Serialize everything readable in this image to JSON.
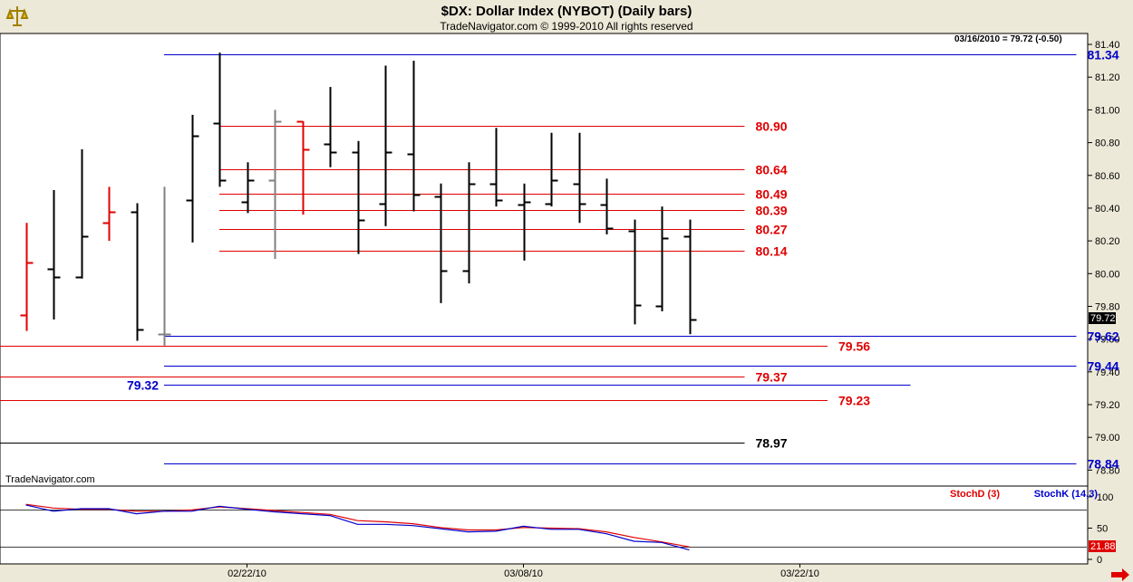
{
  "header": {
    "title": "$DX:  Dollar Index (NYBOT)  (Daily bars)",
    "subtitle": "TradeNavigator.com © 1999-2010 All rights reserved"
  },
  "watermark": "TradeNavigator.com",
  "last_quote": "03/16/2010 = 79.72 (-0.50)",
  "last_price_tag": "79.72",
  "stoch_value_tag": "21.88",
  "colors": {
    "panel_bg": "#ffffff",
    "frame_bg": "#ece9d8",
    "up_red": "#e00000",
    "blue": "#0000cc",
    "black": "#000000",
    "gray": "#808080"
  },
  "chart_data": [
    {
      "type": "ohlc",
      "title": "$DX:  Dollar Index (NYBOT)  (Daily bars)",
      "ylim": [
        78.78,
        81.45
      ],
      "y_ticks": [
        "81.40",
        "81.20",
        "81.00",
        "80.80",
        "80.60",
        "80.40",
        "80.20",
        "80.00",
        "79.80",
        "79.60",
        "79.40",
        "79.20",
        "79.00",
        "78.80"
      ],
      "x_ticks": [
        {
          "label": "02/22/10",
          "bar_index": 8
        },
        {
          "label": "03/08/10",
          "bar_index": 18
        },
        {
          "label": "03/22/10",
          "bar_index": 28
        }
      ],
      "bars": [
        {
          "open": 79.75,
          "high": 80.31,
          "low": 79.65,
          "close": 80.07,
          "color": "red"
        },
        {
          "open": 80.03,
          "high": 80.51,
          "low": 79.72,
          "close": 79.98,
          "color": "black"
        },
        {
          "open": 79.98,
          "high": 80.76,
          "low": 79.97,
          "close": 80.23,
          "color": "black"
        },
        {
          "open": 80.31,
          "high": 80.53,
          "low": 80.2,
          "close": 80.38,
          "color": "red"
        },
        {
          "open": 80.38,
          "high": 80.43,
          "low": 79.59,
          "close": 79.66,
          "color": "black"
        },
        {
          "open": 79.63,
          "high": 80.53,
          "low": 79.56,
          "close": 79.63,
          "color": "gray"
        },
        {
          "open": 80.45,
          "high": 80.97,
          "low": 80.19,
          "close": 80.84,
          "color": "black"
        },
        {
          "open": 80.92,
          "high": 81.35,
          "low": 80.53,
          "close": 80.57,
          "color": "black"
        },
        {
          "open": 80.44,
          "high": 80.68,
          "low": 80.37,
          "close": 80.57,
          "color": "black"
        },
        {
          "open": 80.57,
          "high": 81.0,
          "low": 80.09,
          "close": 80.93,
          "color": "gray"
        },
        {
          "open": 80.93,
          "high": 80.93,
          "low": 80.36,
          "close": 80.76,
          "color": "red"
        },
        {
          "open": 80.79,
          "high": 81.14,
          "low": 80.65,
          "close": 80.74,
          "color": "black"
        },
        {
          "open": 80.74,
          "high": 80.81,
          "low": 80.12,
          "close": 80.33,
          "color": "black"
        },
        {
          "open": 80.43,
          "high": 81.27,
          "low": 80.29,
          "close": 80.74,
          "color": "black"
        },
        {
          "open": 80.73,
          "high": 81.3,
          "low": 80.38,
          "close": 80.48,
          "color": "black"
        },
        {
          "open": 80.47,
          "high": 80.55,
          "low": 79.82,
          "close": 80.02,
          "color": "black"
        },
        {
          "open": 80.02,
          "high": 80.68,
          "low": 79.94,
          "close": 80.55,
          "color": "black"
        },
        {
          "open": 80.55,
          "high": 80.89,
          "low": 80.41,
          "close": 80.45,
          "color": "black"
        },
        {
          "open": 80.42,
          "high": 80.55,
          "low": 80.08,
          "close": 80.44,
          "color": "black"
        },
        {
          "open": 80.43,
          "high": 80.86,
          "low": 80.41,
          "close": 80.57,
          "color": "black"
        },
        {
          "open": 80.55,
          "high": 80.86,
          "low": 80.31,
          "close": 80.43,
          "color": "black"
        },
        {
          "open": 80.42,
          "high": 80.58,
          "low": 80.24,
          "close": 80.28,
          "color": "black"
        },
        {
          "open": 80.26,
          "high": 80.33,
          "low": 79.69,
          "close": 79.81,
          "color": "black"
        },
        {
          "open": 79.8,
          "high": 80.41,
          "low": 79.77,
          "close": 80.22,
          "color": "black"
        },
        {
          "open": 80.23,
          "high": 80.33,
          "low": 79.63,
          "close": 79.72,
          "color": "black"
        }
      ],
      "levels": [
        {
          "value": 81.34,
          "label": "81.34",
          "color": "blue",
          "from_bar": 5,
          "to_bar": 38,
          "label_side": "right"
        },
        {
          "value": 80.9,
          "label": "80.90",
          "color": "red",
          "from_bar": 7,
          "to_bar": 26,
          "label_side": "right"
        },
        {
          "value": 80.64,
          "label": "80.64",
          "color": "red",
          "from_bar": 7,
          "to_bar": 26,
          "label_side": "right"
        },
        {
          "value": 80.49,
          "label": "80.49",
          "color": "red",
          "from_bar": 7,
          "to_bar": 26,
          "label_side": "right"
        },
        {
          "value": 80.39,
          "label": "80.39",
          "color": "red",
          "from_bar": 7,
          "to_bar": 26,
          "label_side": "right"
        },
        {
          "value": 80.27,
          "label": "80.27",
          "color": "red",
          "from_bar": 7,
          "to_bar": 26,
          "label_side": "right"
        },
        {
          "value": 80.14,
          "label": "80.14",
          "color": "red",
          "from_bar": 7,
          "to_bar": 26,
          "label_side": "right"
        },
        {
          "value": 79.62,
          "label": "79.62",
          "color": "blue",
          "from_bar": 5,
          "to_bar": 38,
          "label_side": "right"
        },
        {
          "value": 79.56,
          "label": "79.56",
          "color": "red",
          "from_bar": -1,
          "to_bar": 29,
          "label_side": "right"
        },
        {
          "value": 79.44,
          "label": "79.44",
          "color": "blue",
          "from_bar": 5,
          "to_bar": 38,
          "label_side": "right"
        },
        {
          "value": 79.37,
          "label": "79.37",
          "color": "red",
          "from_bar": -1,
          "to_bar": 26,
          "label_side": "right"
        },
        {
          "value": 79.32,
          "label": "79.32",
          "color": "blue",
          "from_bar": 5,
          "to_bar": 32,
          "label_side": "left"
        },
        {
          "value": 79.23,
          "label": "79.23",
          "color": "red",
          "from_bar": -1,
          "to_bar": 29,
          "label_side": "right"
        },
        {
          "value": 78.97,
          "label": "78.97",
          "color": "black",
          "from_bar": -1,
          "to_bar": 26,
          "label_side": "right"
        },
        {
          "value": 78.84,
          "label": "78.84",
          "color": "blue",
          "from_bar": 5,
          "to_bar": 38,
          "label_side": "right"
        }
      ]
    },
    {
      "type": "line",
      "ylim": [
        0,
        110
      ],
      "y_ticks": [
        "100",
        "50",
        "0"
      ],
      "reference_lines": [
        80,
        20
      ],
      "series": [
        {
          "name": "StochD (3)",
          "color": "red",
          "values": [
            88,
            82,
            80,
            80,
            77,
            77,
            79,
            84,
            81,
            78,
            75,
            72,
            62,
            60,
            57,
            51,
            47,
            47,
            51,
            50,
            49,
            44,
            35,
            28,
            20
          ]
        },
        {
          "name": "StochK (14,3)",
          "color": "blue",
          "values": [
            87,
            77,
            81,
            81,
            73,
            77,
            77,
            85,
            80,
            76,
            73,
            70,
            56,
            56,
            54,
            49,
            44,
            45,
            53,
            48,
            48,
            41,
            29,
            27,
            15
          ]
        }
      ]
    }
  ]
}
